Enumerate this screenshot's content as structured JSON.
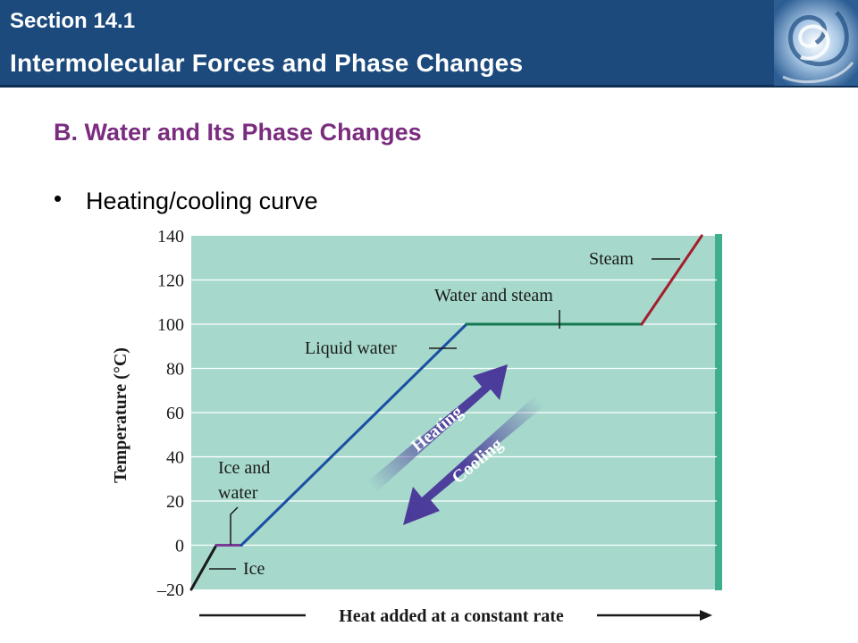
{
  "banner": {
    "section_label": "Section 14.1",
    "section_title": "Intermolecular Forces and Phase Changes"
  },
  "slide": {
    "heading": "B. Water and Its Phase Changes",
    "bullet": "Heating/cooling curve"
  },
  "colors": {
    "banner": "#1c4a7c",
    "heading": "#7a2c7f",
    "plot_bg": "#a6d9cc",
    "ice": "#1a1a1a",
    "ice_water": "#7a3a96",
    "liquid": "#1b4fa3",
    "water_steam": "#157a50",
    "steam": "#a41e2b",
    "arrow": "#4a3a9a"
  },
  "chart_data": {
    "type": "line",
    "ylabel": "Temperature (°C)",
    "xlabel": "Heat added at a constant rate",
    "ylim": [
      -20,
      140
    ],
    "yticks": [
      "140",
      "120",
      "100",
      "80",
      "60",
      "40",
      "20",
      "0",
      "–20"
    ],
    "ytick_values": [
      140,
      120,
      100,
      80,
      60,
      40,
      20,
      0,
      -20
    ],
    "grid": true,
    "segments": [
      {
        "name": "Ice",
        "points": [
          [
            0,
            -20
          ],
          [
            0.5,
            0
          ]
        ],
        "color_key": "ice"
      },
      {
        "name": "Ice and water",
        "points": [
          [
            0.5,
            0
          ],
          [
            1,
            0
          ]
        ],
        "color_key": "ice_water"
      },
      {
        "name": "Liquid water",
        "points": [
          [
            1,
            0
          ],
          [
            5.5,
            100
          ]
        ],
        "color_key": "liquid"
      },
      {
        "name": "Water and steam",
        "points": [
          [
            5.5,
            100
          ],
          [
            9,
            100
          ]
        ],
        "color_key": "water_steam"
      },
      {
        "name": "Steam",
        "points": [
          [
            9,
            100
          ],
          [
            10.2,
            140
          ]
        ],
        "color_key": "steam"
      }
    ],
    "xlim": [
      0,
      10.5
    ],
    "annotations": {
      "steam": "Steam",
      "water_steam": "Water and steam",
      "liquid": "Liquid water",
      "ice_water_1": "Ice and",
      "ice_water_2": "water",
      "ice": "Ice",
      "heating": "Heating",
      "cooling": "Cooling"
    }
  }
}
